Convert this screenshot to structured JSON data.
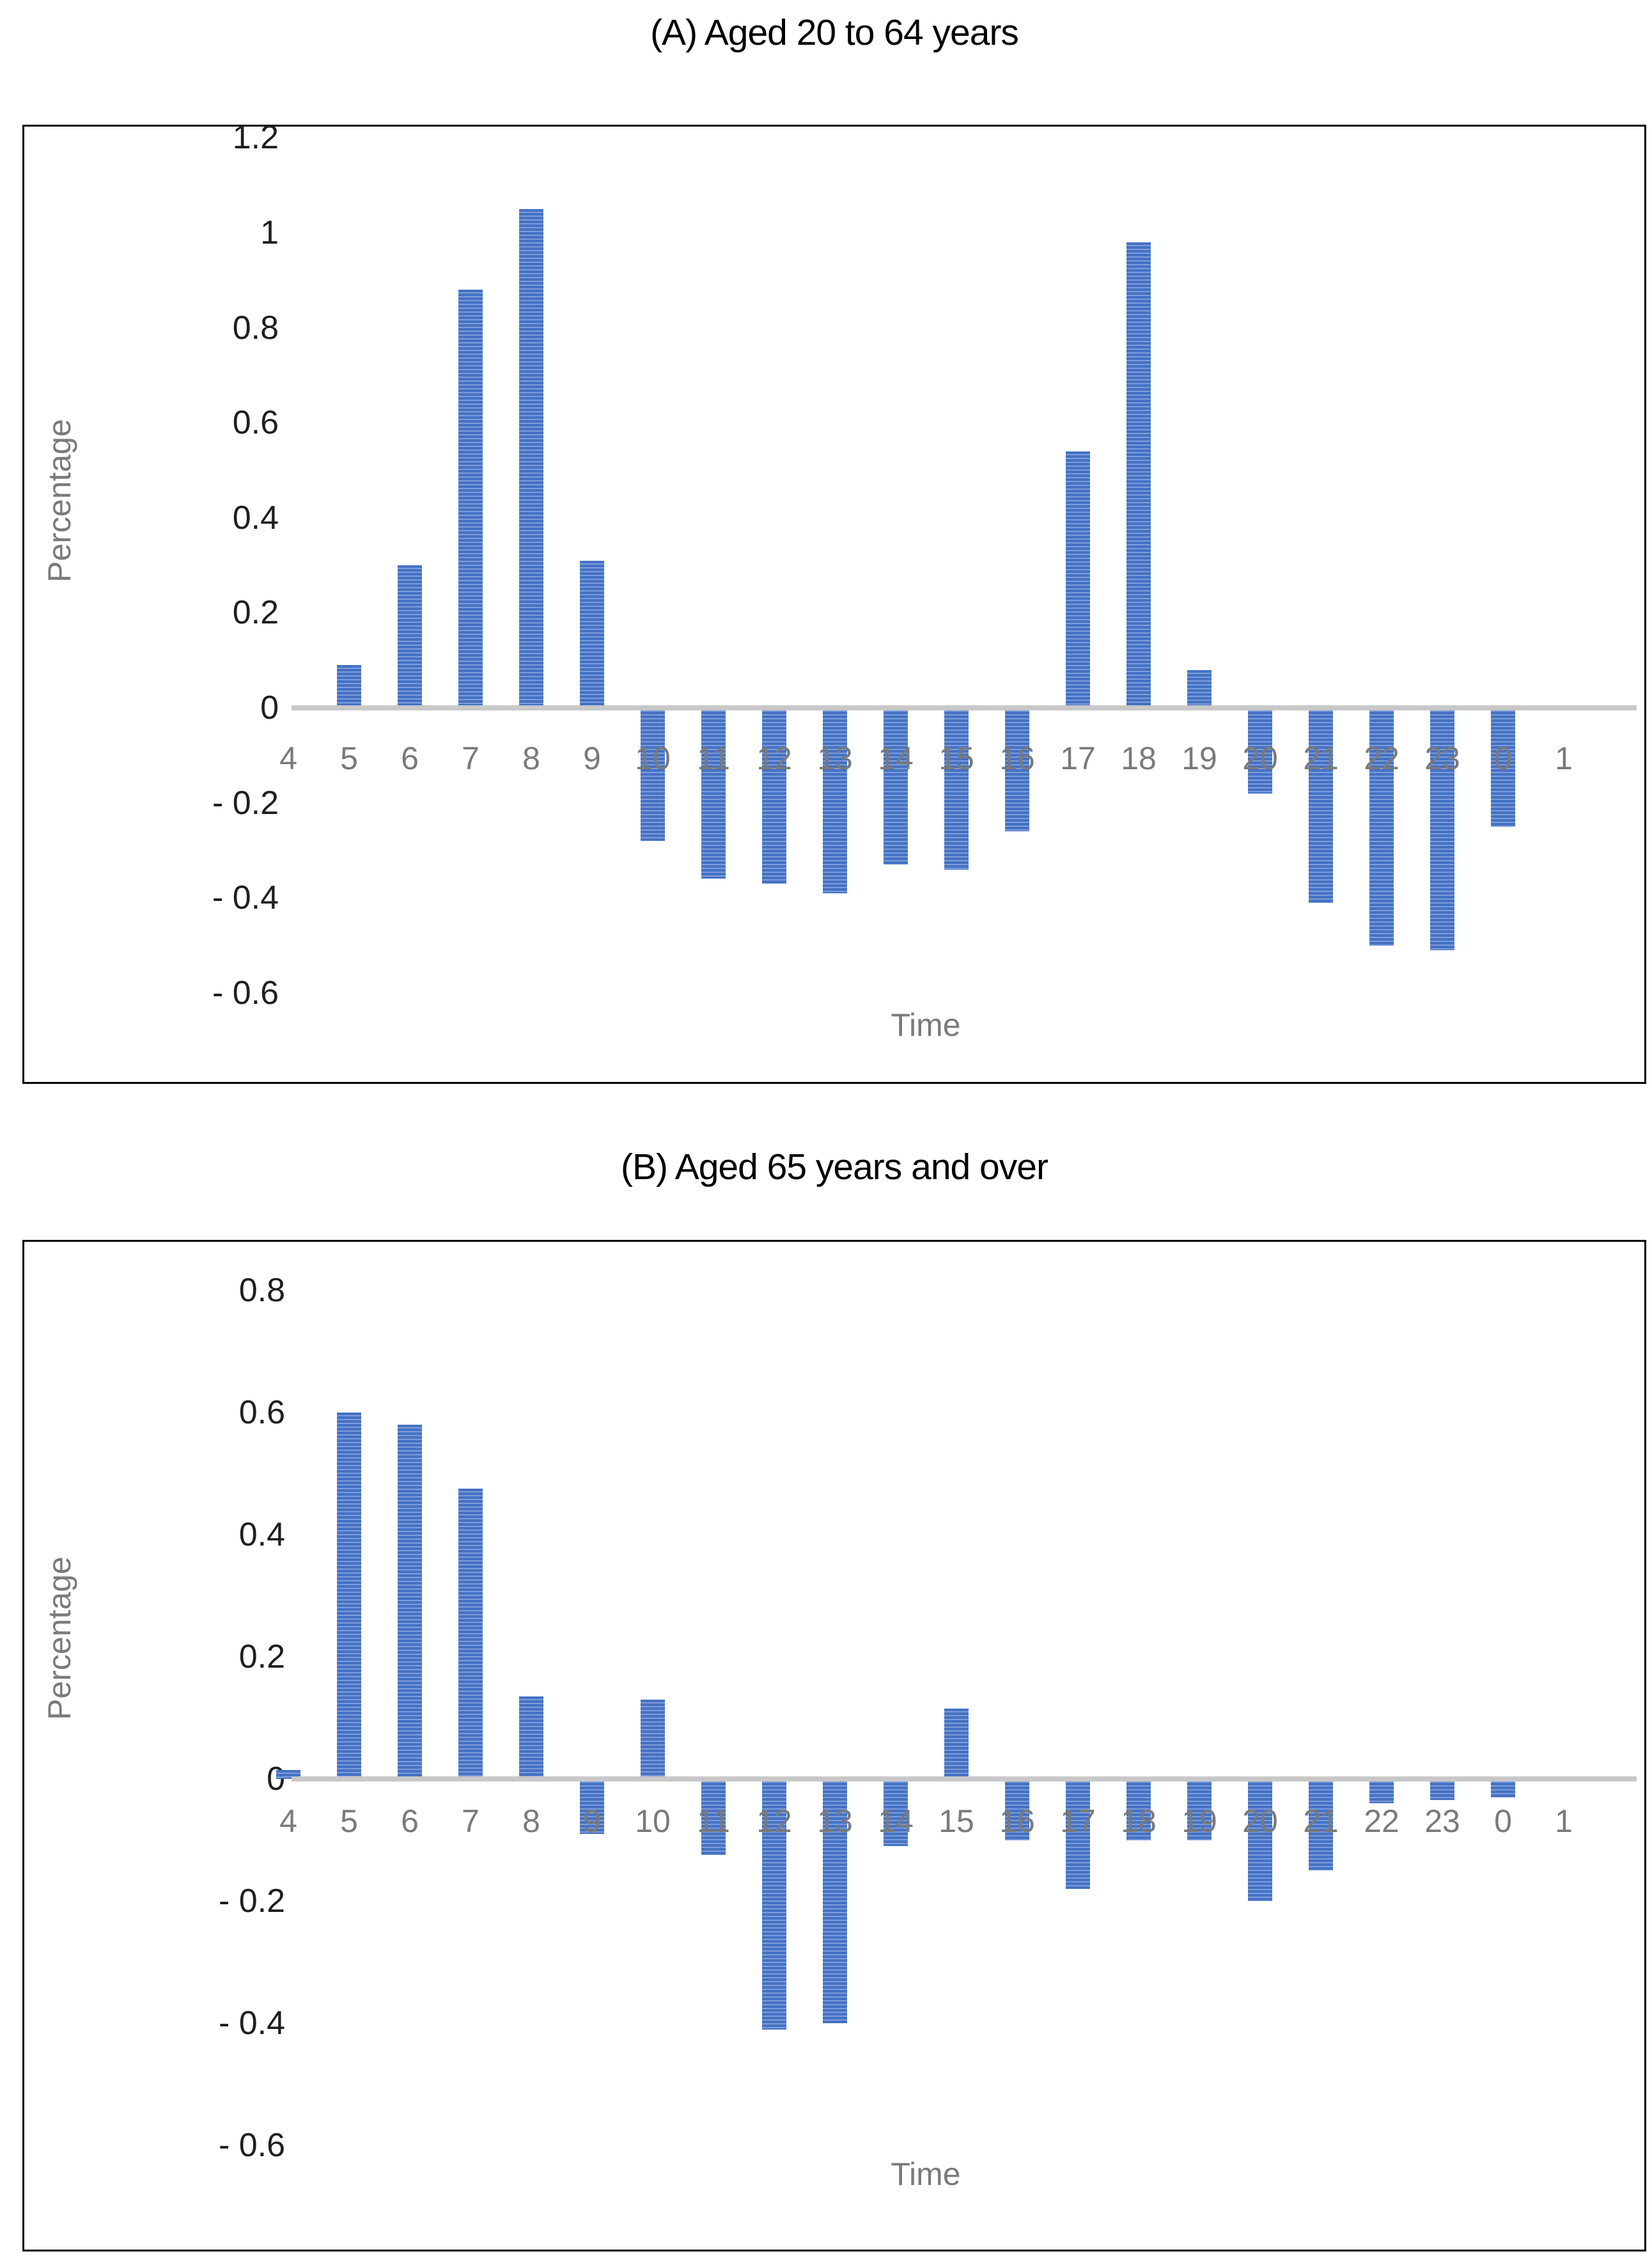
{
  "figure": {
    "background_color": "#ffffff",
    "bar_color": "#4472c4",
    "bar_stripe_color": "#7e9bd9",
    "zero_line_color": "#c8c8c8",
    "title_color": "#000000",
    "tick_label_color": "#1f1f1f",
    "category_label_color": "#7a7a7a",
    "axis_title_color": "#7a7a7a"
  },
  "chart_data": [
    {
      "type": "bar",
      "title": "(A) Aged 20 to 64 years",
      "xlabel": "Time",
      "ylabel": "Percentage",
      "categories": [
        "4",
        "5",
        "6",
        "7",
        "8",
        "9",
        "10",
        "11",
        "12",
        "13",
        "14",
        "15",
        "16",
        "17",
        "18",
        "19",
        "20",
        "21",
        "22",
        "23",
        "0",
        "1"
      ],
      "values": [
        0,
        0.09,
        0.3,
        0.88,
        1.05,
        0.31,
        -0.28,
        -0.36,
        -0.37,
        -0.39,
        -0.33,
        -0.34,
        -0.26,
        0.54,
        0.98,
        0.08,
        -0.18,
        -0.41,
        -0.5,
        -0.51,
        -0.25,
        0
      ],
      "ylim": [
        -0.6,
        1.2
      ],
      "ytick_step": 0.2,
      "yticks": [
        {
          "label": "1.2",
          "value": 1.2
        },
        {
          "label": "1",
          "value": 1.0
        },
        {
          "label": "0.8",
          "value": 0.8
        },
        {
          "label": "0.6",
          "value": 0.6
        },
        {
          "label": "0.4",
          "value": 0.4
        },
        {
          "label": "0.2",
          "value": 0.2
        },
        {
          "label": "0",
          "value": 0
        },
        {
          "label": "- 0.2",
          "value": -0.2
        },
        {
          "label": "- 0.4",
          "value": -0.4
        },
        {
          "label": "- 0.6",
          "value": -0.6
        }
      ],
      "grid": false,
      "legend": null
    },
    {
      "type": "bar",
      "title": "(B) Aged 65 years and over",
      "xlabel": "Time",
      "ylabel": "Percentage",
      "categories": [
        "4",
        "5",
        "6",
        "7",
        "8",
        "9",
        "10",
        "11",
        "12",
        "13",
        "14",
        "15",
        "16",
        "17",
        "18",
        "19",
        "20",
        "21",
        "22",
        "23",
        "0",
        "1"
      ],
      "values": [
        0.015,
        0.6,
        0.58,
        0.475,
        0.135,
        -0.09,
        0.13,
        -0.125,
        -0.41,
        -0.4,
        -0.11,
        0.115,
        -0.1,
        -0.18,
        -0.1,
        -0.1,
        -0.2,
        -0.15,
        -0.04,
        -0.035,
        -0.03,
        0
      ],
      "ylim": [
        -0.6,
        0.8
      ],
      "ytick_step": 0.2,
      "yticks": [
        {
          "label": "0.8",
          "value": 0.8
        },
        {
          "label": "0.6",
          "value": 0.6
        },
        {
          "label": "0.4",
          "value": 0.4
        },
        {
          "label": "0.2",
          "value": 0.2
        },
        {
          "label": "0",
          "value": 0
        },
        {
          "label": "- 0.2",
          "value": -0.2
        },
        {
          "label": "- 0.4",
          "value": -0.4
        },
        {
          "label": "- 0.6",
          "value": -0.6
        }
      ],
      "grid": false,
      "legend": null
    }
  ]
}
